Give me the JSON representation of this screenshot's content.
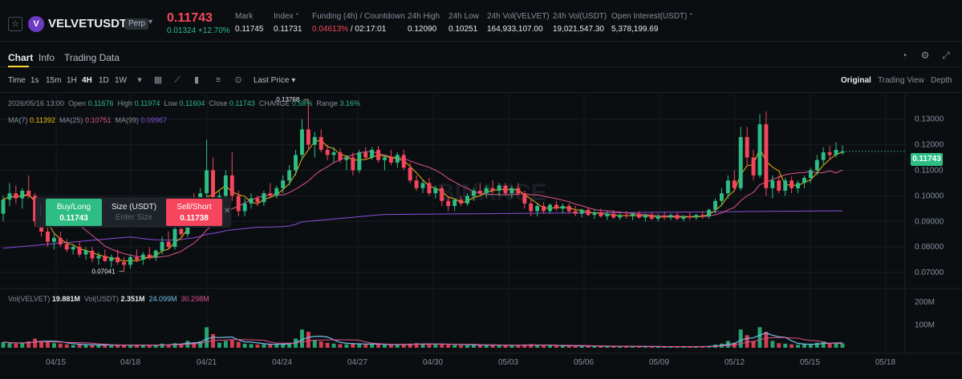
{
  "ticker": {
    "star_icon": "star-icon",
    "logo_letter": "V",
    "symbol": "VELVETUSDT",
    "badge": "Perp",
    "last_price": "0.11743",
    "change": "0.01324 +12.70%",
    "stats": [
      {
        "key": "Mark",
        "value": "0.11745"
      },
      {
        "key": "Index ᐩ",
        "value": "0.11731"
      },
      {
        "key": "Funding (4h) / Countdown",
        "value_red": "0.04613%",
        "value": " / 02:17:01"
      },
      {
        "key": "24h High",
        "value": "0.12090"
      },
      {
        "key": "24h Low",
        "value": "0.10251"
      },
      {
        "key": "24h Vol(VELVET)",
        "value": "164,933,107.00"
      },
      {
        "key": "24h Vol(USDT)",
        "value": "19,021,547.30"
      },
      {
        "key": "Open Interest(USDT) ᐩ",
        "value": "5,378,199.69"
      }
    ]
  },
  "tabs": [
    "Chart",
    "Info",
    "Trading Data"
  ],
  "toolbar": {
    "intervals": [
      "Time",
      "1s",
      "15m",
      "1H",
      "4H",
      "1D",
      "1W"
    ],
    "active_interval": "4H",
    "price_type": "Last Price",
    "views": [
      "Original",
      "Trading View",
      "Depth"
    ],
    "active_view": "Original"
  },
  "info": {
    "date": "2026/05/16 13:00",
    "open_label": "Open",
    "open": "0.11676",
    "high_label": "High",
    "high": "0.11974",
    "low_label": "Low",
    "low": "0.11604",
    "close_label": "Close",
    "close": "0.11743",
    "change_label": "CHANGE",
    "change": "0.58%",
    "range_label": "Range",
    "range": "3.16%"
  },
  "ma": {
    "ma7_label": "MA(7)",
    "ma7": "0.11392",
    "ma25_label": "MA(25)",
    "ma25": "0.10751",
    "ma99_label": "MA(99)",
    "ma99": "0.09967"
  },
  "vol": {
    "velvet_label": "Vol(VELVET)",
    "velvet": "19.881M",
    "usdt_label": "Vol(USDT)",
    "usdt": "2.351M",
    "ma5": "24.099M",
    "ma10": "30.298M"
  },
  "trade": {
    "buy_label": "Buy/Long",
    "buy_price": "0.11743",
    "size_label": "Size (USDT)",
    "size_placeholder": "Enter Size",
    "sell_label": "Sell/Short",
    "sell_price": "0.11738"
  },
  "price_tag": "0.11743",
  "watermark": "BINANCE",
  "chart_data": {
    "type": "candlestick",
    "x_labels": [
      "04/15",
      "04/18",
      "04/21",
      "04/24",
      "04/27",
      "04/30",
      "05/03",
      "05/06",
      "05/09",
      "05/12",
      "05/15",
      "05/18"
    ],
    "y_ticks": [
      "0.13000",
      "0.12000",
      "0.11000",
      "0.10000",
      "0.09000",
      "0.08000",
      "0.07000"
    ],
    "ylim": [
      0.0653,
      0.1365
    ],
    "vol_ticks": [
      "200M",
      "100M"
    ],
    "annotations": {
      "high": "0.13768",
      "low": "0.07041"
    },
    "colors": {
      "up": "#2ebd85",
      "down": "#f6465d",
      "ma7": "#f0b90b",
      "ma25": "#e2538f",
      "ma99": "#8a4ddb",
      "vol_ma5": "#74c0e8",
      "vol_ma10": "#e2538f"
    },
    "candles": [
      {
        "o": 0.093,
        "h": 0.1,
        "l": 0.09,
        "c": 0.0985,
        "v": 25
      },
      {
        "o": 0.0985,
        "h": 0.105,
        "l": 0.096,
        "c": 0.101,
        "v": 20
      },
      {
        "o": 0.101,
        "h": 0.104,
        "l": 0.097,
        "c": 0.099,
        "v": 18
      },
      {
        "o": 0.099,
        "h": 0.103,
        "l": 0.095,
        "c": 0.102,
        "v": 22
      },
      {
        "o": 0.102,
        "h": 0.108,
        "l": 0.099,
        "c": 0.1,
        "v": 28
      },
      {
        "o": 0.1,
        "h": 0.101,
        "l": 0.088,
        "c": 0.09,
        "v": 40
      },
      {
        "o": 0.09,
        "h": 0.093,
        "l": 0.084,
        "c": 0.086,
        "v": 30
      },
      {
        "o": 0.086,
        "h": 0.088,
        "l": 0.08,
        "c": 0.082,
        "v": 26
      },
      {
        "o": 0.082,
        "h": 0.085,
        "l": 0.079,
        "c": 0.0835,
        "v": 20
      },
      {
        "o": 0.0835,
        "h": 0.086,
        "l": 0.08,
        "c": 0.081,
        "v": 18
      },
      {
        "o": 0.081,
        "h": 0.083,
        "l": 0.078,
        "c": 0.079,
        "v": 15
      },
      {
        "o": 0.079,
        "h": 0.081,
        "l": 0.077,
        "c": 0.08,
        "v": 12
      },
      {
        "o": 0.08,
        "h": 0.082,
        "l": 0.076,
        "c": 0.077,
        "v": 14
      },
      {
        "o": 0.077,
        "h": 0.08,
        "l": 0.075,
        "c": 0.0785,
        "v": 12
      },
      {
        "o": 0.0785,
        "h": 0.08,
        "l": 0.074,
        "c": 0.0755,
        "v": 13
      },
      {
        "o": 0.0755,
        "h": 0.078,
        "l": 0.073,
        "c": 0.0765,
        "v": 11
      },
      {
        "o": 0.0765,
        "h": 0.079,
        "l": 0.074,
        "c": 0.0745,
        "v": 12
      },
      {
        "o": 0.0745,
        "h": 0.077,
        "l": 0.072,
        "c": 0.076,
        "v": 10
      },
      {
        "o": 0.076,
        "h": 0.079,
        "l": 0.073,
        "c": 0.074,
        "v": 11
      },
      {
        "o": 0.074,
        "h": 0.076,
        "l": 0.0704,
        "c": 0.073,
        "v": 14
      },
      {
        "o": 0.073,
        "h": 0.077,
        "l": 0.0715,
        "c": 0.076,
        "v": 12
      },
      {
        "o": 0.076,
        "h": 0.079,
        "l": 0.074,
        "c": 0.075,
        "v": 10
      },
      {
        "o": 0.075,
        "h": 0.078,
        "l": 0.073,
        "c": 0.077,
        "v": 11
      },
      {
        "o": 0.077,
        "h": 0.08,
        "l": 0.075,
        "c": 0.076,
        "v": 10
      },
      {
        "o": 0.076,
        "h": 0.079,
        "l": 0.0745,
        "c": 0.0785,
        "v": 12
      },
      {
        "o": 0.0785,
        "h": 0.084,
        "l": 0.077,
        "c": 0.082,
        "v": 18
      },
      {
        "o": 0.082,
        "h": 0.086,
        "l": 0.079,
        "c": 0.08,
        "v": 14
      },
      {
        "o": 0.08,
        "h": 0.088,
        "l": 0.079,
        "c": 0.087,
        "v": 20
      },
      {
        "o": 0.087,
        "h": 0.093,
        "l": 0.084,
        "c": 0.085,
        "v": 18
      },
      {
        "o": 0.085,
        "h": 0.098,
        "l": 0.084,
        "c": 0.096,
        "v": 30
      },
      {
        "o": 0.096,
        "h": 0.101,
        "l": 0.09,
        "c": 0.092,
        "v": 24
      },
      {
        "o": 0.092,
        "h": 0.103,
        "l": 0.091,
        "c": 0.101,
        "v": 28
      },
      {
        "o": 0.101,
        "h": 0.122,
        "l": 0.099,
        "c": 0.11,
        "v": 90
      },
      {
        "o": 0.11,
        "h": 0.115,
        "l": 0.095,
        "c": 0.098,
        "v": 60
      },
      {
        "o": 0.098,
        "h": 0.102,
        "l": 0.094,
        "c": 0.1,
        "v": 22
      },
      {
        "o": 0.1,
        "h": 0.11,
        "l": 0.098,
        "c": 0.108,
        "v": 30
      },
      {
        "o": 0.108,
        "h": 0.117,
        "l": 0.098,
        "c": 0.1,
        "v": 34
      },
      {
        "o": 0.1,
        "h": 0.102,
        "l": 0.092,
        "c": 0.094,
        "v": 26
      },
      {
        "o": 0.094,
        "h": 0.099,
        "l": 0.092,
        "c": 0.097,
        "v": 18
      },
      {
        "o": 0.097,
        "h": 0.101,
        "l": 0.095,
        "c": 0.099,
        "v": 16
      },
      {
        "o": 0.099,
        "h": 0.1,
        "l": 0.096,
        "c": 0.0975,
        "v": 14
      },
      {
        "o": 0.0975,
        "h": 0.102,
        "l": 0.096,
        "c": 0.101,
        "v": 15
      },
      {
        "o": 0.101,
        "h": 0.105,
        "l": 0.099,
        "c": 0.1,
        "v": 14
      },
      {
        "o": 0.1,
        "h": 0.104,
        "l": 0.099,
        "c": 0.103,
        "v": 16
      },
      {
        "o": 0.103,
        "h": 0.108,
        "l": 0.101,
        "c": 0.106,
        "v": 18
      },
      {
        "o": 0.106,
        "h": 0.112,
        "l": 0.104,
        "c": 0.11,
        "v": 22
      },
      {
        "o": 0.11,
        "h": 0.118,
        "l": 0.108,
        "c": 0.116,
        "v": 40
      },
      {
        "o": 0.116,
        "h": 0.13,
        "l": 0.114,
        "c": 0.126,
        "v": 80
      },
      {
        "o": 0.126,
        "h": 0.1377,
        "l": 0.118,
        "c": 0.12,
        "v": 70
      },
      {
        "o": 0.12,
        "h": 0.125,
        "l": 0.115,
        "c": 0.123,
        "v": 35
      },
      {
        "o": 0.123,
        "h": 0.126,
        "l": 0.117,
        "c": 0.118,
        "v": 28
      },
      {
        "o": 0.118,
        "h": 0.12,
        "l": 0.114,
        "c": 0.116,
        "v": 22
      },
      {
        "o": 0.116,
        "h": 0.119,
        "l": 0.113,
        "c": 0.117,
        "v": 18
      },
      {
        "o": 0.117,
        "h": 0.1185,
        "l": 0.113,
        "c": 0.114,
        "v": 16
      },
      {
        "o": 0.114,
        "h": 0.116,
        "l": 0.11,
        "c": 0.115,
        "v": 15
      },
      {
        "o": 0.115,
        "h": 0.117,
        "l": 0.108,
        "c": 0.11,
        "v": 20
      },
      {
        "o": 0.11,
        "h": 0.118,
        "l": 0.109,
        "c": 0.117,
        "v": 18
      },
      {
        "o": 0.117,
        "h": 0.119,
        "l": 0.114,
        "c": 0.115,
        "v": 14
      },
      {
        "o": 0.115,
        "h": 0.119,
        "l": 0.114,
        "c": 0.118,
        "v": 14
      },
      {
        "o": 0.118,
        "h": 0.1195,
        "l": 0.113,
        "c": 0.114,
        "v": 15
      },
      {
        "o": 0.114,
        "h": 0.116,
        "l": 0.11,
        "c": 0.115,
        "v": 13
      },
      {
        "o": 0.115,
        "h": 0.118,
        "l": 0.112,
        "c": 0.113,
        "v": 12
      },
      {
        "o": 0.113,
        "h": 0.117,
        "l": 0.111,
        "c": 0.116,
        "v": 14
      },
      {
        "o": 0.116,
        "h": 0.118,
        "l": 0.11,
        "c": 0.111,
        "v": 16
      },
      {
        "o": 0.111,
        "h": 0.113,
        "l": 0.105,
        "c": 0.106,
        "v": 18
      },
      {
        "o": 0.106,
        "h": 0.108,
        "l": 0.102,
        "c": 0.103,
        "v": 20
      },
      {
        "o": 0.103,
        "h": 0.106,
        "l": 0.101,
        "c": 0.105,
        "v": 15
      },
      {
        "o": 0.105,
        "h": 0.107,
        "l": 0.1,
        "c": 0.101,
        "v": 16
      },
      {
        "o": 0.101,
        "h": 0.104,
        "l": 0.099,
        "c": 0.103,
        "v": 14
      },
      {
        "o": 0.103,
        "h": 0.104,
        "l": 0.096,
        "c": 0.098,
        "v": 18
      },
      {
        "o": 0.098,
        "h": 0.1,
        "l": 0.094,
        "c": 0.096,
        "v": 16
      },
      {
        "o": 0.096,
        "h": 0.099,
        "l": 0.094,
        "c": 0.0985,
        "v": 12
      },
      {
        "o": 0.0985,
        "h": 0.1,
        "l": 0.096,
        "c": 0.097,
        "v": 10
      },
      {
        "o": 0.097,
        "h": 0.101,
        "l": 0.096,
        "c": 0.1,
        "v": 11
      },
      {
        "o": 0.1,
        "h": 0.103,
        "l": 0.098,
        "c": 0.102,
        "v": 14
      },
      {
        "o": 0.102,
        "h": 0.105,
        "l": 0.1,
        "c": 0.101,
        "v": 12
      },
      {
        "o": 0.101,
        "h": 0.104,
        "l": 0.099,
        "c": 0.103,
        "v": 11
      },
      {
        "o": 0.103,
        "h": 0.106,
        "l": 0.101,
        "c": 0.102,
        "v": 12
      },
      {
        "o": 0.102,
        "h": 0.105,
        "l": 0.1,
        "c": 0.104,
        "v": 10
      },
      {
        "o": 0.104,
        "h": 0.105,
        "l": 0.1,
        "c": 0.101,
        "v": 12
      },
      {
        "o": 0.101,
        "h": 0.104,
        "l": 0.099,
        "c": 0.103,
        "v": 10
      },
      {
        "o": 0.103,
        "h": 0.105,
        "l": 0.1,
        "c": 0.101,
        "v": 9
      },
      {
        "o": 0.101,
        "h": 0.102,
        "l": 0.095,
        "c": 0.097,
        "v": 15
      },
      {
        "o": 0.097,
        "h": 0.099,
        "l": 0.092,
        "c": 0.094,
        "v": 16
      },
      {
        "o": 0.094,
        "h": 0.097,
        "l": 0.092,
        "c": 0.096,
        "v": 10
      },
      {
        "o": 0.096,
        "h": 0.0975,
        "l": 0.093,
        "c": 0.094,
        "v": 9
      },
      {
        "o": 0.094,
        "h": 0.097,
        "l": 0.093,
        "c": 0.0965,
        "v": 10
      },
      {
        "o": 0.0965,
        "h": 0.098,
        "l": 0.094,
        "c": 0.095,
        "v": 9
      },
      {
        "o": 0.095,
        "h": 0.097,
        "l": 0.093,
        "c": 0.096,
        "v": 8
      },
      {
        "o": 0.096,
        "h": 0.097,
        "l": 0.093,
        "c": 0.094,
        "v": 9
      },
      {
        "o": 0.094,
        "h": 0.096,
        "l": 0.092,
        "c": 0.093,
        "v": 8
      },
      {
        "o": 0.093,
        "h": 0.095,
        "l": 0.0915,
        "c": 0.0945,
        "v": 8
      },
      {
        "o": 0.0945,
        "h": 0.0955,
        "l": 0.092,
        "c": 0.0925,
        "v": 7
      },
      {
        "o": 0.0925,
        "h": 0.0945,
        "l": 0.091,
        "c": 0.0935,
        "v": 7
      },
      {
        "o": 0.0935,
        "h": 0.095,
        "l": 0.0915,
        "c": 0.092,
        "v": 7
      },
      {
        "o": 0.092,
        "h": 0.094,
        "l": 0.0905,
        "c": 0.093,
        "v": 6
      },
      {
        "o": 0.093,
        "h": 0.0945,
        "l": 0.091,
        "c": 0.0915,
        "v": 6
      },
      {
        "o": 0.0915,
        "h": 0.0935,
        "l": 0.0905,
        "c": 0.0925,
        "v": 6
      },
      {
        "o": 0.0925,
        "h": 0.094,
        "l": 0.091,
        "c": 0.092,
        "v": 6
      },
      {
        "o": 0.092,
        "h": 0.0935,
        "l": 0.0905,
        "c": 0.093,
        "v": 6
      },
      {
        "o": 0.093,
        "h": 0.094,
        "l": 0.091,
        "c": 0.0915,
        "v": 5
      },
      {
        "o": 0.0915,
        "h": 0.093,
        "l": 0.09,
        "c": 0.0925,
        "v": 5
      },
      {
        "o": 0.0925,
        "h": 0.0935,
        "l": 0.0905,
        "c": 0.091,
        "v": 5
      },
      {
        "o": 0.091,
        "h": 0.093,
        "l": 0.09,
        "c": 0.092,
        "v": 5
      },
      {
        "o": 0.092,
        "h": 0.0935,
        "l": 0.0905,
        "c": 0.0915,
        "v": 5
      },
      {
        "o": 0.0915,
        "h": 0.093,
        "l": 0.0905,
        "c": 0.0925,
        "v": 5
      },
      {
        "o": 0.0925,
        "h": 0.0935,
        "l": 0.0905,
        "c": 0.091,
        "v": 5
      },
      {
        "o": 0.091,
        "h": 0.0925,
        "l": 0.09,
        "c": 0.092,
        "v": 5
      },
      {
        "o": 0.092,
        "h": 0.0935,
        "l": 0.0905,
        "c": 0.0915,
        "v": 5
      },
      {
        "o": 0.0915,
        "h": 0.093,
        "l": 0.0905,
        "c": 0.0925,
        "v": 5
      },
      {
        "o": 0.0925,
        "h": 0.094,
        "l": 0.091,
        "c": 0.092,
        "v": 6
      },
      {
        "o": 0.092,
        "h": 0.095,
        "l": 0.091,
        "c": 0.0945,
        "v": 8
      },
      {
        "o": 0.0945,
        "h": 0.099,
        "l": 0.093,
        "c": 0.098,
        "v": 14
      },
      {
        "o": 0.098,
        "h": 0.103,
        "l": 0.096,
        "c": 0.101,
        "v": 18
      },
      {
        "o": 0.101,
        "h": 0.108,
        "l": 0.099,
        "c": 0.106,
        "v": 30
      },
      {
        "o": 0.106,
        "h": 0.11,
        "l": 0.102,
        "c": 0.103,
        "v": 22
      },
      {
        "o": 0.103,
        "h": 0.127,
        "l": 0.102,
        "c": 0.123,
        "v": 80
      },
      {
        "o": 0.123,
        "h": 0.127,
        "l": 0.112,
        "c": 0.115,
        "v": 55
      },
      {
        "o": 0.115,
        "h": 0.118,
        "l": 0.106,
        "c": 0.108,
        "v": 30
      },
      {
        "o": 0.108,
        "h": 0.132,
        "l": 0.107,
        "c": 0.128,
        "v": 90
      },
      {
        "o": 0.128,
        "h": 0.133,
        "l": 0.1,
        "c": 0.103,
        "v": 70
      },
      {
        "o": 0.103,
        "h": 0.108,
        "l": 0.099,
        "c": 0.106,
        "v": 30
      },
      {
        "o": 0.106,
        "h": 0.108,
        "l": 0.101,
        "c": 0.102,
        "v": 20
      },
      {
        "o": 0.102,
        "h": 0.107,
        "l": 0.1,
        "c": 0.106,
        "v": 18
      },
      {
        "o": 0.106,
        "h": 0.1075,
        "l": 0.101,
        "c": 0.103,
        "v": 15
      },
      {
        "o": 0.103,
        "h": 0.106,
        "l": 0.101,
        "c": 0.105,
        "v": 13
      },
      {
        "o": 0.105,
        "h": 0.108,
        "l": 0.103,
        "c": 0.107,
        "v": 14
      },
      {
        "o": 0.107,
        "h": 0.111,
        "l": 0.105,
        "c": 0.11,
        "v": 16
      },
      {
        "o": 0.11,
        "h": 0.116,
        "l": 0.108,
        "c": 0.114,
        "v": 22
      },
      {
        "o": 0.114,
        "h": 0.119,
        "l": 0.112,
        "c": 0.117,
        "v": 28
      },
      {
        "o": 0.117,
        "h": 0.1195,
        "l": 0.114,
        "c": 0.116,
        "v": 18
      },
      {
        "o": 0.116,
        "h": 0.121,
        "l": 0.115,
        "c": 0.118,
        "v": 20
      },
      {
        "o": 0.1168,
        "h": 0.1197,
        "l": 0.116,
        "c": 0.1174,
        "v": 19
      }
    ]
  }
}
